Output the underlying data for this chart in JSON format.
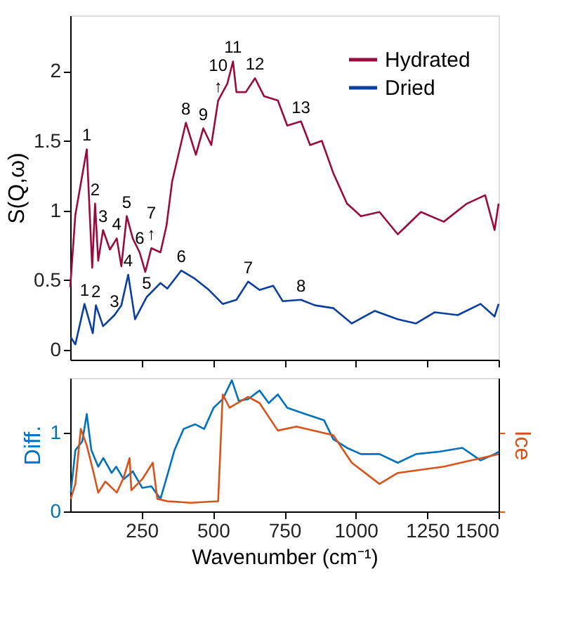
{
  "chart_data": [
    {
      "type": "line",
      "ylabel": "S(Q,ω)",
      "xlim": [
        0,
        1500
      ],
      "xticks": [
        250,
        500,
        750,
        1000,
        1250,
        1500
      ],
      "ylim": [
        -0.07,
        2.4
      ],
      "yticks": [
        0,
        0.5,
        1,
        1.5,
        2
      ],
      "tick_labels": "y",
      "legend": "top right",
      "grid": false,
      "series": [
        {
          "name": "Hydrated",
          "color": "#9b0a3f",
          "x": [
            0,
            18,
            58,
            77,
            87,
            98,
            115,
            139,
            163,
            179,
            198,
            219,
            243,
            263,
            284,
            316,
            337,
            357,
            405,
            440,
            466,
            494,
            518,
            550,
            570,
            582,
            615,
            647,
            679,
            727,
            760,
            808,
            840,
            881,
            921,
            969,
            1018,
            1083,
            1147,
            1228,
            1308,
            1389,
            1453,
            1486,
            1500
          ],
          "values": [
            0.45,
            0.97,
            1.44,
            0.59,
            1.05,
            0.64,
            0.86,
            0.72,
            0.8,
            0.6,
            0.96,
            0.8,
            0.7,
            0.56,
            0.73,
            0.7,
            0.89,
            1.21,
            1.63,
            1.4,
            1.59,
            1.47,
            1.79,
            1.91,
            2.07,
            1.85,
            1.85,
            1.95,
            1.82,
            1.79,
            1.61,
            1.64,
            1.47,
            1.5,
            1.27,
            1.05,
            0.96,
            0.99,
            0.83,
            0.99,
            0.92,
            1.05,
            1.11,
            0.86,
            1.05
          ]
        },
        {
          "name": "Dried",
          "color": "#0a3fa0",
          "x": [
            2,
            18,
            50,
            79,
            90,
            115,
            155,
            179,
            203,
            227,
            268,
            316,
            340,
            389,
            437,
            486,
            534,
            582,
            623,
            663,
            711,
            744,
            808,
            857,
            921,
            986,
            1066,
            1147,
            1211,
            1276,
            1357,
            1437,
            1486,
            1500
          ],
          "values": [
            0.09,
            0.04,
            0.33,
            0.12,
            0.32,
            0.17,
            0.25,
            0.32,
            0.54,
            0.22,
            0.38,
            0.48,
            0.44,
            0.57,
            0.51,
            0.43,
            0.33,
            0.36,
            0.49,
            0.43,
            0.46,
            0.35,
            0.36,
            0.32,
            0.3,
            0.19,
            0.28,
            0.22,
            0.19,
            0.27,
            0.25,
            0.33,
            0.24,
            0.33
          ]
        }
      ],
      "annotations": [
        {
          "text": "1",
          "x": 58,
          "y": 1.44
        },
        {
          "text": "2",
          "x": 87,
          "y": 1.05
        },
        {
          "text": "3",
          "x": 115,
          "y": 0.86
        },
        {
          "text": "4",
          "x": 163,
          "y": 0.8
        },
        {
          "text": "5",
          "x": 198,
          "y": 0.96
        },
        {
          "text": "6",
          "x": 243,
          "y": 0.7
        },
        {
          "text": "↑",
          "x": 284,
          "y": 0.73
        },
        {
          "text": "7",
          "x": 284,
          "y": 0.73
        },
        {
          "text": "8",
          "x": 405,
          "y": 1.63
        },
        {
          "text": "9",
          "x": 466,
          "y": 1.59
        },
        {
          "text": "↑",
          "x": 518,
          "y": 1.79
        },
        {
          "text": "10",
          "x": 518,
          "y": 1.79
        },
        {
          "text": "11",
          "x": 570,
          "y": 2.07
        },
        {
          "text": "12",
          "x": 647,
          "y": 1.95
        },
        {
          "text": "13",
          "x": 808,
          "y": 1.64
        },
        {
          "text": "1",
          "x": 50,
          "y": 0.33
        },
        {
          "text": "2",
          "x": 90,
          "y": 0.32
        },
        {
          "text": "3",
          "x": 155,
          "y": 0.25
        },
        {
          "text": "4",
          "x": 203,
          "y": 0.54
        },
        {
          "text": "5",
          "x": 268,
          "y": 0.38
        },
        {
          "text": "6",
          "x": 389,
          "y": 0.57
        },
        {
          "text": "7",
          "x": 623,
          "y": 0.49
        },
        {
          "text": "8",
          "x": 808,
          "y": 0.36
        }
      ]
    },
    {
      "type": "line",
      "xlabel": "Wavenumber (cm⁻¹)",
      "ylabel": "Diff.",
      "y2label": "Ice",
      "xlim": [
        0,
        1500
      ],
      "xticks": [
        250,
        500,
        750,
        1000,
        1250,
        1500
      ],
      "ylim": [
        0,
        1.7
      ],
      "yticks": [
        0,
        1
      ],
      "grid": false,
      "series": [
        {
          "color": "#0072bd",
          "x": [
            2,
            18,
            42,
            58,
            74,
            98,
            116,
            145,
            161,
            187,
            219,
            252,
            284,
            316,
            340,
            365,
            397,
            437,
            469,
            502,
            534,
            566,
            590,
            623,
            663,
            695,
            727,
            760,
            824,
            889,
            921,
            969,
            1018,
            1083,
            1147,
            1211,
            1292,
            1373,
            1437,
            1486,
            1500
          ],
          "values": [
            0.24,
            0.78,
            0.89,
            1.24,
            0.78,
            0.57,
            0.68,
            0.49,
            0.57,
            0.41,
            0.51,
            0.3,
            0.32,
            0.16,
            0.46,
            0.78,
            1.05,
            1.11,
            1.05,
            1.32,
            1.43,
            1.67,
            1.41,
            1.43,
            1.54,
            1.38,
            1.49,
            1.32,
            1.24,
            1.16,
            0.92,
            0.81,
            0.73,
            0.73,
            0.62,
            0.73,
            0.76,
            0.81,
            0.65,
            0.73,
            0.76
          ]
        },
        {
          "color": "#d95319",
          "x": [
            2,
            18,
            37,
            58,
            82,
            98,
            123,
            163,
            187,
            208,
            214,
            252,
            289,
            305,
            340,
            421,
            518,
            534,
            558,
            623,
            663,
            727,
            792,
            921,
            986,
            1083,
            1147,
            1308,
            1405,
            1500
          ],
          "values": [
            0.16,
            0.35,
            1.05,
            0.84,
            0.49,
            0.24,
            0.38,
            0.24,
            0.43,
            0.68,
            0.27,
            0.41,
            0.62,
            0.16,
            0.13,
            0.11,
            0.13,
            1.49,
            1.32,
            1.46,
            1.38,
            1.03,
            1.08,
            0.97,
            0.62,
            0.35,
            0.49,
            0.57,
            0.65,
            0.73
          ]
        }
      ]
    }
  ]
}
